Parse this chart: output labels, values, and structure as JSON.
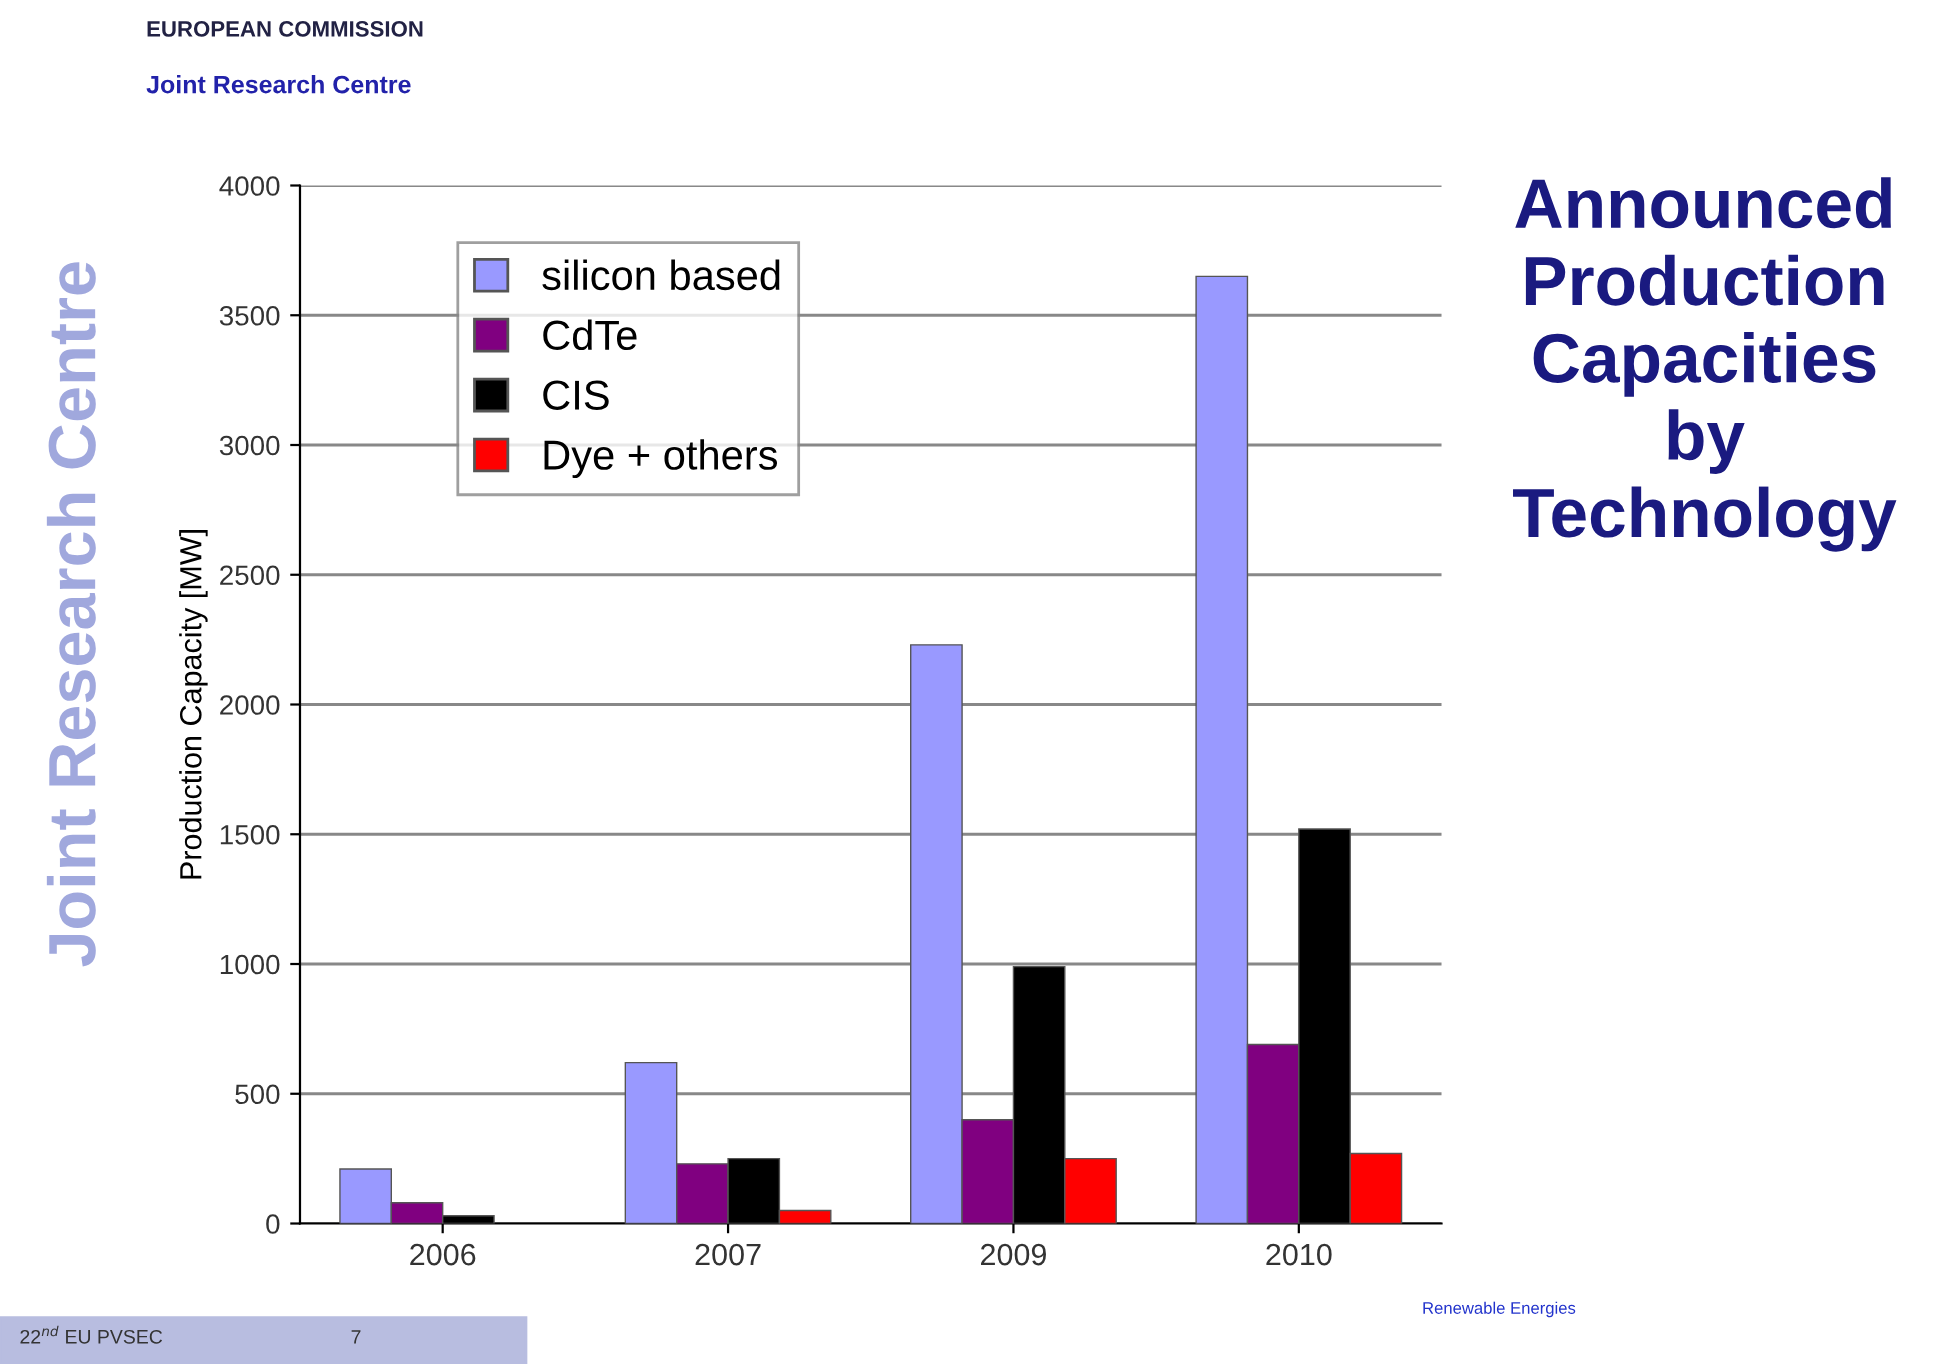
{
  "chart_data": {
    "type": "bar",
    "title": "Announced\nProduction\nCapacities\nby\nTechnology",
    "ylabel": "Production Capacity [MW]",
    "categories": [
      "2006",
      "2007",
      "2009",
      "2010"
    ],
    "series": [
      {
        "name": "silicon based",
        "color": "#9999ff",
        "values": [
          210,
          620,
          2230,
          3650
        ]
      },
      {
        "name": "CdTe",
        "color": "#800080",
        "values": [
          80,
          230,
          400,
          690
        ]
      },
      {
        "name": "CIS",
        "color": "#000000",
        "values": [
          30,
          250,
          990,
          1520
        ]
      },
      {
        "name": "Dye + others",
        "color": "#ff0000",
        "values": [
          null,
          50,
          250,
          270
        ]
      }
    ],
    "ylim": [
      0,
      4000
    ],
    "yticks": [
      0,
      500,
      1000,
      1500,
      2000,
      2500,
      3000,
      3500,
      4000
    ],
    "grid": "y",
    "legend": "top left",
    "annotations": [
      "EUROPEAN COMMISSION",
      "Joint Research Centre",
      "Joint Research Centre",
      "Renewable Energies",
      "22$^{nd}$ EU PVSEC",
      "7"
    ]
  }
}
